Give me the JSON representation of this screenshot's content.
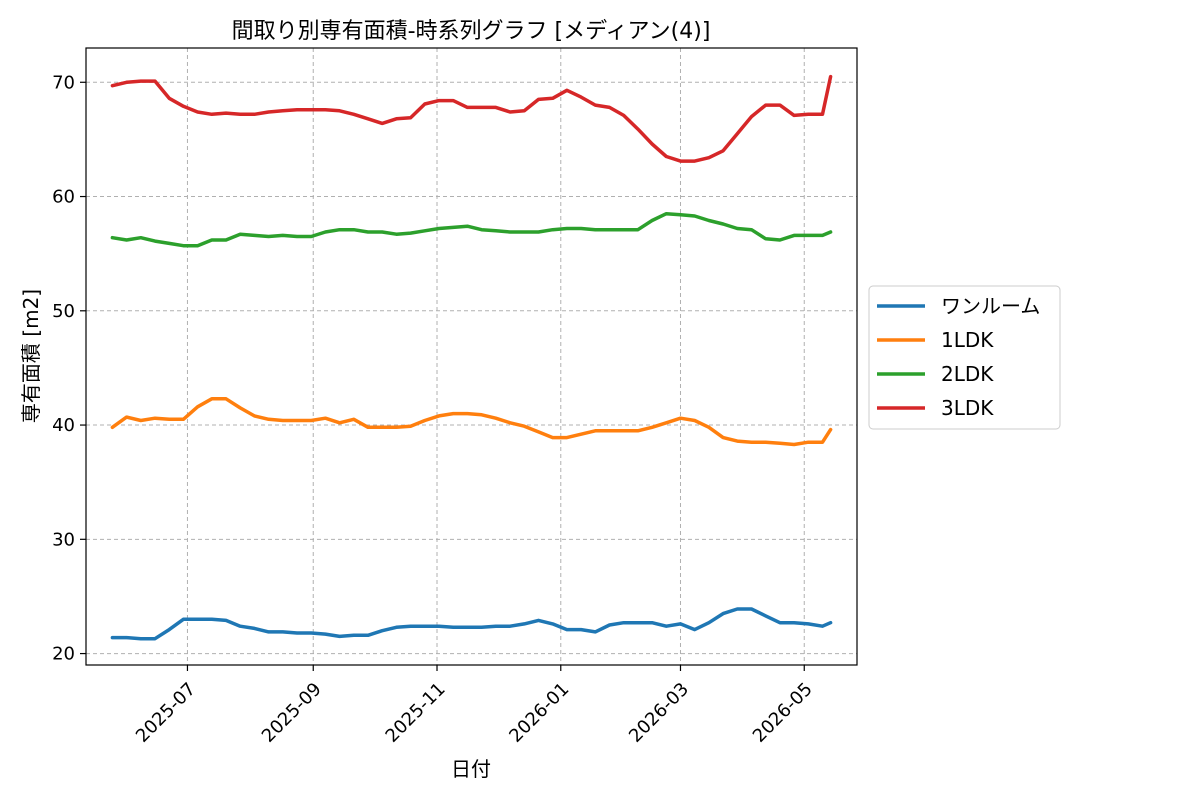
{
  "chart_data": {
    "type": "line",
    "title": "間取り別専有面積-時系列グラフ [メディアン(4)]",
    "xlabel": "日付",
    "ylabel": "専有面積 [m2]",
    "ylim": [
      19,
      73
    ],
    "yticks": [
      20,
      30,
      40,
      50,
      60,
      70
    ],
    "xticks": [
      "2025-07",
      "2025-09",
      "2025-11",
      "2026-01",
      "2026-03",
      "2026-05"
    ],
    "grid": true,
    "legend_position": "right-outside",
    "x": [
      "2025-05-25",
      "2025-06-01",
      "2025-06-08",
      "2025-06-15",
      "2025-06-22",
      "2025-06-29",
      "2025-07-06",
      "2025-07-13",
      "2025-07-20",
      "2025-07-27",
      "2025-08-03",
      "2025-08-10",
      "2025-08-17",
      "2025-08-24",
      "2025-08-31",
      "2025-09-07",
      "2025-09-14",
      "2025-09-21",
      "2025-09-28",
      "2025-10-05",
      "2025-10-12",
      "2025-10-19",
      "2025-10-26",
      "2025-11-02",
      "2025-11-09",
      "2025-11-16",
      "2025-11-23",
      "2025-11-30",
      "2025-12-07",
      "2025-12-14",
      "2025-12-21",
      "2025-12-28",
      "2026-01-04",
      "2026-01-11",
      "2026-01-18",
      "2026-01-25",
      "2026-02-01",
      "2026-02-08",
      "2026-02-15",
      "2026-02-22",
      "2026-03-01",
      "2026-03-08",
      "2026-03-15",
      "2026-03-22",
      "2026-03-29",
      "2026-04-05",
      "2026-04-12",
      "2026-04-19",
      "2026-04-26",
      "2026-05-03",
      "2026-05-10",
      "2026-05-14"
    ],
    "series": [
      {
        "name": "ワンルーム",
        "color": "#1f77b4",
        "values": [
          21.4,
          21.4,
          21.3,
          21.3,
          22.1,
          23.0,
          23.0,
          23.0,
          22.9,
          22.4,
          22.2,
          21.9,
          21.9,
          21.8,
          21.8,
          21.7,
          21.5,
          21.6,
          21.6,
          22.0,
          22.3,
          22.4,
          22.4,
          22.4,
          22.3,
          22.3,
          22.3,
          22.4,
          22.4,
          22.6,
          22.9,
          22.6,
          22.1,
          22.1,
          21.9,
          22.5,
          22.7,
          22.7,
          22.7,
          22.4,
          22.6,
          22.1,
          22.7,
          23.5,
          23.9,
          23.9,
          23.3,
          22.7,
          22.7,
          22.6,
          22.4,
          22.7
        ]
      },
      {
        "name": "1LDK",
        "color": "#ff7f0e",
        "values": [
          39.8,
          40.7,
          40.4,
          40.6,
          40.5,
          40.5,
          41.6,
          42.3,
          42.3,
          41.5,
          40.8,
          40.5,
          40.4,
          40.4,
          40.4,
          40.6,
          40.2,
          40.5,
          39.8,
          39.8,
          39.8,
          39.9,
          40.4,
          40.8,
          41.0,
          41.0,
          40.9,
          40.6,
          40.2,
          39.9,
          39.4,
          38.9,
          38.9,
          39.2,
          39.5,
          39.5,
          39.5,
          39.5,
          39.8,
          40.2,
          40.6,
          40.4,
          39.8,
          38.9,
          38.6,
          38.5,
          38.5,
          38.4,
          38.3,
          38.5,
          38.5,
          39.6
        ]
      },
      {
        "name": "2LDK",
        "color": "#2ca02c",
        "values": [
          56.4,
          56.2,
          56.4,
          56.1,
          55.9,
          55.7,
          55.7,
          56.2,
          56.2,
          56.7,
          56.6,
          56.5,
          56.6,
          56.5,
          56.5,
          56.9,
          57.1,
          57.1,
          56.9,
          56.9,
          56.7,
          56.8,
          57.0,
          57.2,
          57.3,
          57.4,
          57.1,
          57.0,
          56.9,
          56.9,
          56.9,
          57.1,
          57.2,
          57.2,
          57.1,
          57.1,
          57.1,
          57.1,
          57.9,
          58.5,
          58.4,
          58.3,
          57.9,
          57.6,
          57.2,
          57.1,
          56.3,
          56.2,
          56.6,
          56.6,
          56.6,
          56.9
        ]
      },
      {
        "name": "3LDK",
        "color": "#d62728",
        "values": [
          69.7,
          70.0,
          70.1,
          70.1,
          68.6,
          67.9,
          67.4,
          67.2,
          67.3,
          67.2,
          67.2,
          67.4,
          67.5,
          67.6,
          67.6,
          67.6,
          67.5,
          67.2,
          66.8,
          66.4,
          66.8,
          66.9,
          68.1,
          68.4,
          68.4,
          67.8,
          67.8,
          67.8,
          67.4,
          67.5,
          68.5,
          68.6,
          69.3,
          68.7,
          68.0,
          67.8,
          67.1,
          65.9,
          64.6,
          63.5,
          63.1,
          63.1,
          63.4,
          64.0,
          65.5,
          67.0,
          68.0,
          68.0,
          67.1,
          67.2,
          67.2,
          70.5
        ]
      }
    ]
  }
}
